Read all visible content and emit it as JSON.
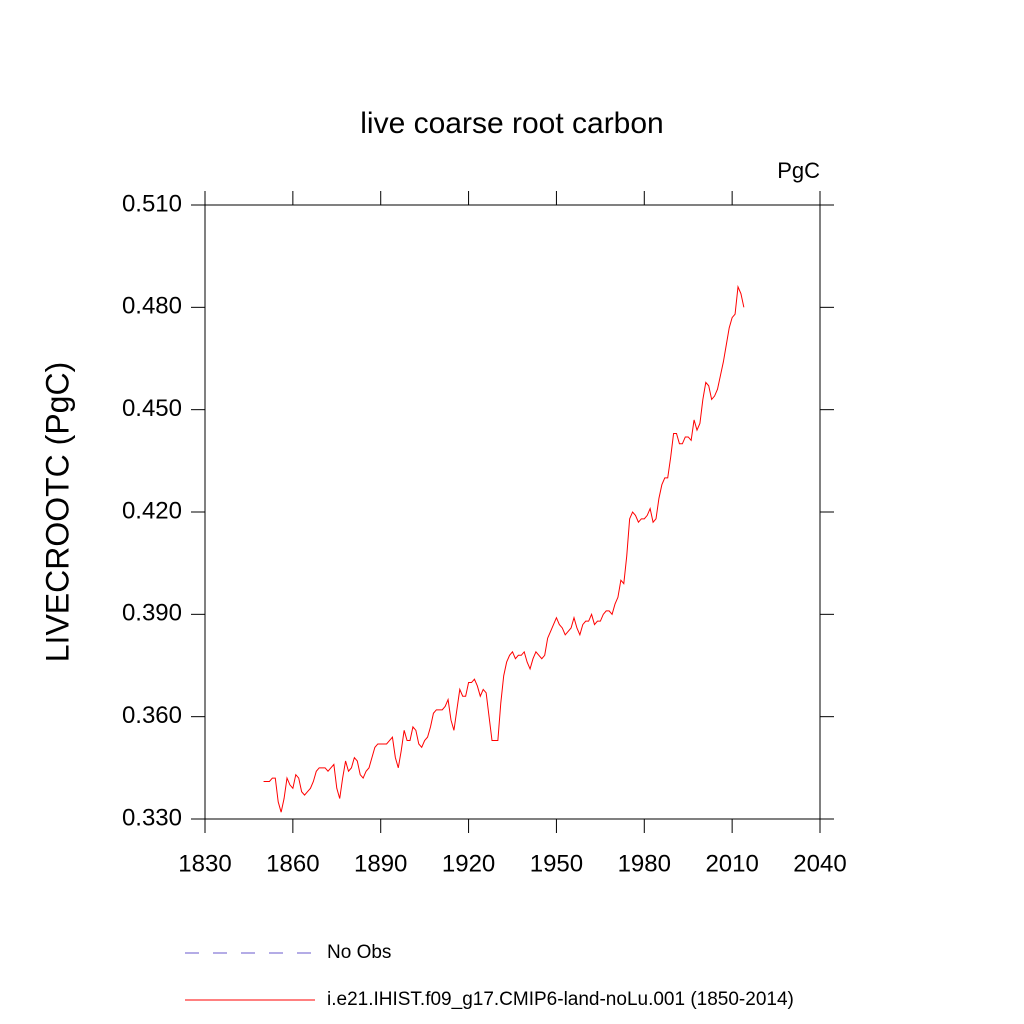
{
  "chart_data": {
    "type": "line",
    "title": "live coarse root carbon",
    "units": "PgC",
    "ylabel": "LIVECROOTC  (PgC)",
    "xlim": [
      1830,
      2040
    ],
    "xticks": [
      1830,
      1860,
      1890,
      1920,
      1950,
      1980,
      2010,
      2040
    ],
    "ylim": [
      0.33,
      0.51
    ],
    "yticks": [
      {
        "value": 0.33,
        "label": "0.330"
      },
      {
        "value": 0.36,
        "label": "0.360"
      },
      {
        "value": 0.39,
        "label": "0.390"
      },
      {
        "value": 0.42,
        "label": "0.420"
      },
      {
        "value": 0.45,
        "label": "0.450"
      },
      {
        "value": 0.48,
        "label": "0.480"
      },
      {
        "value": 0.51,
        "label": "0.510"
      }
    ],
    "obs": {
      "name": "No Obs",
      "color": "#6a5acd",
      "dashed": true
    },
    "x": [
      1850,
      1851,
      1852,
      1853,
      1854,
      1855,
      1856,
      1857,
      1858,
      1859,
      1860,
      1861,
      1862,
      1863,
      1864,
      1865,
      1866,
      1867,
      1868,
      1869,
      1870,
      1871,
      1872,
      1873,
      1874,
      1875,
      1876,
      1877,
      1878,
      1879,
      1880,
      1881,
      1882,
      1883,
      1884,
      1885,
      1886,
      1887,
      1888,
      1889,
      1890,
      1891,
      1892,
      1893,
      1894,
      1895,
      1896,
      1897,
      1898,
      1899,
      1900,
      1901,
      1902,
      1903,
      1904,
      1905,
      1906,
      1907,
      1908,
      1909,
      1910,
      1911,
      1912,
      1913,
      1914,
      1915,
      1916,
      1917,
      1918,
      1919,
      1920,
      1921,
      1922,
      1923,
      1924,
      1925,
      1926,
      1927,
      1928,
      1929,
      1930,
      1931,
      1932,
      1933,
      1934,
      1935,
      1936,
      1937,
      1938,
      1939,
      1940,
      1941,
      1942,
      1943,
      1944,
      1945,
      1946,
      1947,
      1948,
      1949,
      1950,
      1951,
      1952,
      1953,
      1954,
      1955,
      1956,
      1957,
      1958,
      1959,
      1960,
      1961,
      1962,
      1963,
      1964,
      1965,
      1966,
      1967,
      1968,
      1969,
      1970,
      1971,
      1972,
      1973,
      1974,
      1975,
      1976,
      1977,
      1978,
      1979,
      1980,
      1981,
      1982,
      1983,
      1984,
      1985,
      1986,
      1987,
      1988,
      1989,
      1990,
      1991,
      1992,
      1993,
      1994,
      1995,
      1996,
      1997,
      1998,
      1999,
      2000,
      2001,
      2002,
      2003,
      2004,
      2005,
      2006,
      2007,
      2008,
      2009,
      2010,
      2011,
      2012,
      2013,
      2014
    ],
    "series": [
      {
        "name": "i.e21.IHIST.f09_g17.CMIP6-land-noLu.001 (1850-2014)",
        "color": "#ff0000",
        "values": [
          0.341,
          0.341,
          0.341,
          0.342,
          0.342,
          0.335,
          0.332,
          0.336,
          0.342,
          0.34,
          0.339,
          0.343,
          0.342,
          0.338,
          0.337,
          0.338,
          0.339,
          0.341,
          0.344,
          0.345,
          0.345,
          0.345,
          0.344,
          0.345,
          0.346,
          0.339,
          0.336,
          0.342,
          0.347,
          0.344,
          0.345,
          0.348,
          0.347,
          0.343,
          0.342,
          0.344,
          0.345,
          0.348,
          0.351,
          0.352,
          0.352,
          0.352,
          0.352,
          0.353,
          0.354,
          0.348,
          0.345,
          0.35,
          0.356,
          0.353,
          0.353,
          0.357,
          0.356,
          0.352,
          0.351,
          0.353,
          0.354,
          0.357,
          0.361,
          0.362,
          0.362,
          0.362,
          0.363,
          0.365,
          0.359,
          0.356,
          0.362,
          0.368,
          0.366,
          0.366,
          0.37,
          0.37,
          0.371,
          0.369,
          0.366,
          0.368,
          0.367,
          0.36,
          0.353,
          0.353,
          0.353,
          0.364,
          0.372,
          0.376,
          0.378,
          0.379,
          0.377,
          0.378,
          0.378,
          0.379,
          0.376,
          0.374,
          0.377,
          0.379,
          0.378,
          0.377,
          0.378,
          0.383,
          0.385,
          0.387,
          0.389,
          0.387,
          0.386,
          0.384,
          0.385,
          0.386,
          0.389,
          0.386,
          0.384,
          0.387,
          0.388,
          0.388,
          0.39,
          0.387,
          0.388,
          0.388,
          0.39,
          0.391,
          0.391,
          0.39,
          0.393,
          0.395,
          0.4,
          0.399,
          0.407,
          0.418,
          0.42,
          0.419,
          0.417,
          0.418,
          0.418,
          0.419,
          0.421,
          0.417,
          0.418,
          0.424,
          0.428,
          0.43,
          0.43,
          0.436,
          0.443,
          0.443,
          0.44,
          0.44,
          0.442,
          0.442,
          0.441,
          0.447,
          0.444,
          0.446,
          0.453,
          0.458,
          0.457,
          0.453,
          0.454,
          0.456,
          0.46,
          0.464,
          0.469,
          0.474,
          0.477,
          0.478,
          0.486,
          0.484,
          0.48
        ]
      }
    ]
  }
}
